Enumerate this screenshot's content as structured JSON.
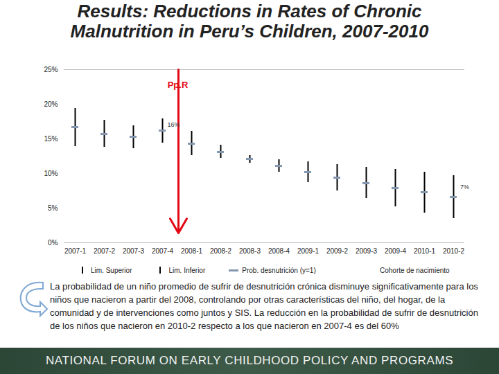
{
  "chart_data": {
    "type": "errorbar",
    "title": "Results: Reductions in Rates of Chronic Malnutrition in Peru’s Children, 2007-2010",
    "xlabel": "Cohorte de nacimiento",
    "categories": [
      "2007-1",
      "2007-2",
      "2007-3",
      "2007-4",
      "2008-1",
      "2008-2",
      "2008-3",
      "2008-4",
      "2009-1",
      "2009-2",
      "2009-3",
      "2009-4",
      "2010-1",
      "2010-2"
    ],
    "series": [
      {
        "name": "Lim. Superior",
        "type": "errorbar",
        "color": "#000000",
        "values": [
          19.4,
          17.7,
          16.9,
          17.9,
          16.1,
          14.1,
          12.6,
          12.0,
          11.7,
          11.3,
          10.9,
          10.6,
          10.2,
          9.7
        ]
      },
      {
        "name": "Lim. Inferior",
        "type": "errorbar",
        "color": "#000000",
        "values": [
          13.9,
          13.8,
          13.6,
          14.4,
          12.6,
          12.2,
          11.5,
          10.2,
          8.7,
          7.5,
          6.4,
          5.2,
          4.3,
          3.5
        ]
      },
      {
        "name": "Prob. desnutrición (y=1)",
        "type": "point",
        "color": "#8497b0",
        "values": [
          16.7,
          15.7,
          15.3,
          16.2,
          14.3,
          13.1,
          12.1,
          11.1,
          10.2,
          9.4,
          8.6,
          7.9,
          7.3,
          6.6
        ]
      }
    ],
    "ylim": [
      0,
      25
    ],
    "yticks": [
      {
        "value": 0,
        "label": "0%"
      },
      {
        "value": 5,
        "label": "5%"
      },
      {
        "value": 10,
        "label": "10%"
      },
      {
        "value": 15,
        "label": "15%"
      },
      {
        "value": 20,
        "label": "20%"
      },
      {
        "value": 25,
        "label": "25%"
      }
    ],
    "grid": false,
    "annotations": [
      {
        "text": "Pp.R",
        "category": "2007-4",
        "color": "#e30613"
      },
      {
        "text": "16%",
        "category": "2007-4",
        "value": 16
      },
      {
        "text": "7%",
        "category": "2010-2",
        "value": 7
      }
    ],
    "caption": "La probabilidad de un niño promedio de sufrir de desnutrición crónica disminuye significativamente para los niños que nacieron a partir del 2008, controlando por otras características del niño, del hogar, de la comunidad y de  intervenciones como juntos y SIS. La reducción en la probabilidad de sufrir de desnutrición de los niños que nacieron en 2010-2 respecto a los que nacieron en 2007-4 es del 60%",
    "footer": "NATIONAL FORUM ON EARLY CHILDHOOD POLICY AND PROGRAMS"
  }
}
